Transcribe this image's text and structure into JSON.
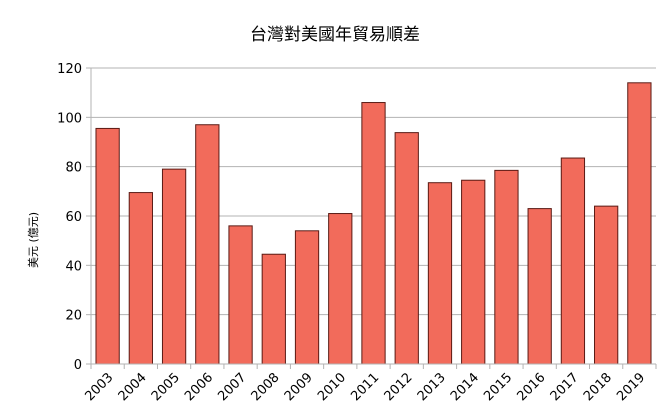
{
  "chart_data": {
    "type": "bar",
    "title": "台灣對美國年貿易順差",
    "xlabel": "",
    "ylabel": "美元 (億元)",
    "categories": [
      "2003",
      "2004",
      "2005",
      "2006",
      "2007",
      "2008",
      "2009",
      "2010",
      "2011",
      "2012",
      "2013",
      "2014",
      "2015",
      "2016",
      "2017",
      "2018",
      "2019"
    ],
    "values": [
      95.5,
      69.5,
      79,
      97,
      56,
      44.5,
      54,
      61,
      106,
      93.8,
      73.5,
      74.5,
      78.5,
      63,
      83.5,
      64,
      114
    ],
    "ylim": [
      0,
      120
    ],
    "yticks": [
      0,
      20,
      40,
      60,
      80,
      100,
      120
    ],
    "grid": true,
    "legend": "none",
    "colors": {
      "bar_fill": "#f26b5b",
      "bar_stroke": "#5a1a14",
      "grid": "#b3b3b3",
      "axis": "#b3b3b3"
    }
  }
}
